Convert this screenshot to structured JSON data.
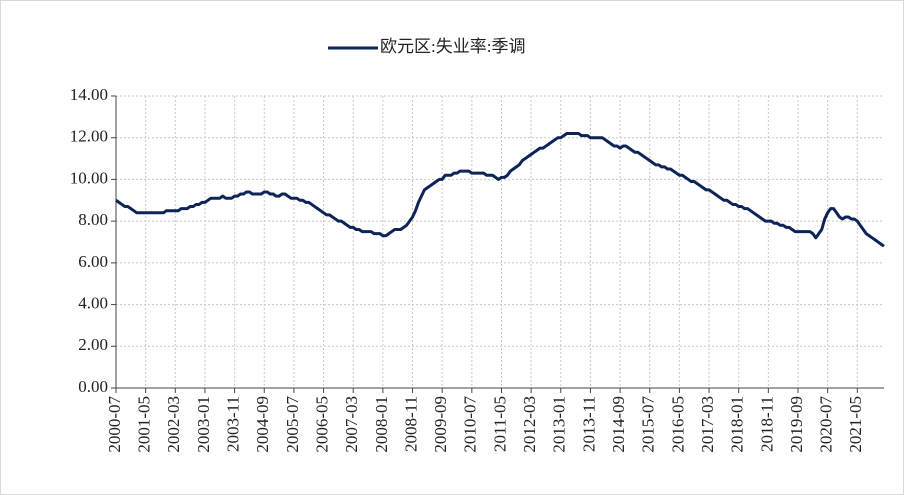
{
  "chart_data": {
    "type": "line",
    "series": [
      {
        "name": "欧元区:失业率:季调",
        "color": "#0d2457",
        "values": [
          9.0,
          8.9,
          8.8,
          8.7,
          8.7,
          8.6,
          8.5,
          8.4,
          8.4,
          8.4,
          8.4,
          8.4,
          8.4,
          8.4,
          8.4,
          8.4,
          8.4,
          8.5,
          8.5,
          8.5,
          8.5,
          8.5,
          8.6,
          8.6,
          8.6,
          8.7,
          8.7,
          8.8,
          8.8,
          8.9,
          8.9,
          9.0,
          9.1,
          9.1,
          9.1,
          9.1,
          9.2,
          9.1,
          9.1,
          9.1,
          9.2,
          9.2,
          9.3,
          9.3,
          9.4,
          9.4,
          9.3,
          9.3,
          9.3,
          9.3,
          9.4,
          9.4,
          9.3,
          9.3,
          9.2,
          9.2,
          9.3,
          9.3,
          9.2,
          9.1,
          9.1,
          9.1,
          9.0,
          9.0,
          8.9,
          8.9,
          8.8,
          8.7,
          8.6,
          8.5,
          8.4,
          8.3,
          8.3,
          8.2,
          8.1,
          8.0,
          8.0,
          7.9,
          7.8,
          7.7,
          7.7,
          7.6,
          7.6,
          7.5,
          7.5,
          7.5,
          7.5,
          7.4,
          7.4,
          7.4,
          7.3,
          7.3,
          7.4,
          7.5,
          7.6,
          7.6,
          7.6,
          7.7,
          7.8,
          8.0,
          8.2,
          8.5,
          8.9,
          9.2,
          9.5,
          9.6,
          9.7,
          9.8,
          9.9,
          10.0,
          10.0,
          10.2,
          10.2,
          10.2,
          10.3,
          10.3,
          10.4,
          10.4,
          10.4,
          10.4,
          10.3,
          10.3,
          10.3,
          10.3,
          10.3,
          10.2,
          10.2,
          10.2,
          10.1,
          10.0,
          10.1,
          10.1,
          10.2,
          10.4,
          10.5,
          10.6,
          10.7,
          10.9,
          11.0,
          11.1,
          11.2,
          11.3,
          11.4,
          11.5,
          11.5,
          11.6,
          11.7,
          11.8,
          11.9,
          12.0,
          12.0,
          12.1,
          12.2,
          12.2,
          12.2,
          12.2,
          12.2,
          12.1,
          12.1,
          12.1,
          12.0,
          12.0,
          12.0,
          12.0,
          12.0,
          11.9,
          11.8,
          11.7,
          11.6,
          11.6,
          11.5,
          11.6,
          11.6,
          11.5,
          11.4,
          11.3,
          11.3,
          11.2,
          11.1,
          11.0,
          10.9,
          10.8,
          10.7,
          10.7,
          10.6,
          10.6,
          10.5,
          10.5,
          10.4,
          10.3,
          10.2,
          10.2,
          10.1,
          10.0,
          9.9,
          9.9,
          9.8,
          9.7,
          9.6,
          9.5,
          9.5,
          9.4,
          9.3,
          9.2,
          9.1,
          9.0,
          9.0,
          8.9,
          8.8,
          8.8,
          8.7,
          8.7,
          8.6,
          8.6,
          8.5,
          8.4,
          8.3,
          8.2,
          8.1,
          8.0,
          8.0,
          8.0,
          7.9,
          7.9,
          7.8,
          7.8,
          7.7,
          7.7,
          7.6,
          7.5,
          7.5,
          7.5,
          7.5,
          7.5,
          7.5,
          7.4,
          7.2,
          7.4,
          7.6,
          8.1,
          8.4,
          8.6,
          8.6,
          8.4,
          8.2,
          8.1,
          8.2,
          8.2,
          8.1,
          8.1,
          8.0,
          7.8,
          7.6,
          7.4,
          7.3,
          7.2,
          7.1,
          7.0,
          6.9,
          6.8
        ]
      }
    ],
    "categories": [
      "2000-07",
      null,
      null,
      null,
      null,
      null,
      null,
      null,
      null,
      null,
      "2001-05",
      null,
      null,
      null,
      null,
      null,
      null,
      null,
      null,
      null,
      "2002-03",
      null,
      null,
      null,
      null,
      null,
      null,
      null,
      null,
      null,
      "2003-01",
      null,
      null,
      null,
      null,
      null,
      null,
      null,
      null,
      null,
      "2003-11",
      null,
      null,
      null,
      null,
      null,
      null,
      null,
      null,
      null,
      "2004-09",
      null,
      null,
      null,
      null,
      null,
      null,
      null,
      null,
      null,
      "2005-07",
      null,
      null,
      null,
      null,
      null,
      null,
      null,
      null,
      null,
      "2006-05",
      null,
      null,
      null,
      null,
      null,
      null,
      null,
      null,
      null,
      "2007-03",
      null,
      null,
      null,
      null,
      null,
      null,
      null,
      null,
      null,
      "2008-01",
      null,
      null,
      null,
      null,
      null,
      null,
      null,
      null,
      null,
      "2008-11",
      null,
      null,
      null,
      null,
      null,
      null,
      null,
      null,
      null,
      "2009-09",
      null,
      null,
      null,
      null,
      null,
      null,
      null,
      null,
      null,
      "2010-07",
      null,
      null,
      null,
      null,
      null,
      null,
      null,
      null,
      null,
      "2011-05",
      null,
      null,
      null,
      null,
      null,
      null,
      null,
      null,
      null,
      "2012-03",
      null,
      null,
      null,
      null,
      null,
      null,
      null,
      null,
      null,
      "2013-01",
      null,
      null,
      null,
      null,
      null,
      null,
      null,
      null,
      null,
      "2013-11",
      null,
      null,
      null,
      null,
      null,
      null,
      null,
      null,
      null,
      "2014-09",
      null,
      null,
      null,
      null,
      null,
      null,
      null,
      null,
      null,
      "2015-07",
      null,
      null,
      null,
      null,
      null,
      null,
      null,
      null,
      null,
      "2016-05",
      null,
      null,
      null,
      null,
      null,
      null,
      null,
      null,
      null,
      "2017-03",
      null,
      null,
      null,
      null,
      null,
      null,
      null,
      null,
      null,
      "2018-01",
      null,
      null,
      null,
      null,
      null,
      null,
      null,
      null,
      null,
      "2018-11",
      null,
      null,
      null,
      null,
      null,
      null,
      null,
      null,
      null,
      "2019-09",
      null,
      null,
      null,
      null,
      null,
      null,
      null,
      null,
      null,
      "2020-07",
      null,
      null,
      null,
      null,
      null,
      null,
      null,
      null,
      null,
      "2021-05",
      null,
      null,
      null,
      null,
      null,
      null,
      null,
      null,
      null
    ],
    "ylim": [
      0,
      14
    ],
    "yticks": [
      {
        "value": 0,
        "label": "0.00"
      },
      {
        "value": 2,
        "label": "2.00"
      },
      {
        "value": 4,
        "label": "4.00"
      },
      {
        "value": 6,
        "label": "6.00"
      },
      {
        "value": 8,
        "label": "8.00"
      },
      {
        "value": 10,
        "label": "10.00"
      },
      {
        "value": 12,
        "label": "12.00"
      },
      {
        "value": 14,
        "label": "14.00"
      }
    ],
    "grid": true,
    "legend": "top"
  }
}
